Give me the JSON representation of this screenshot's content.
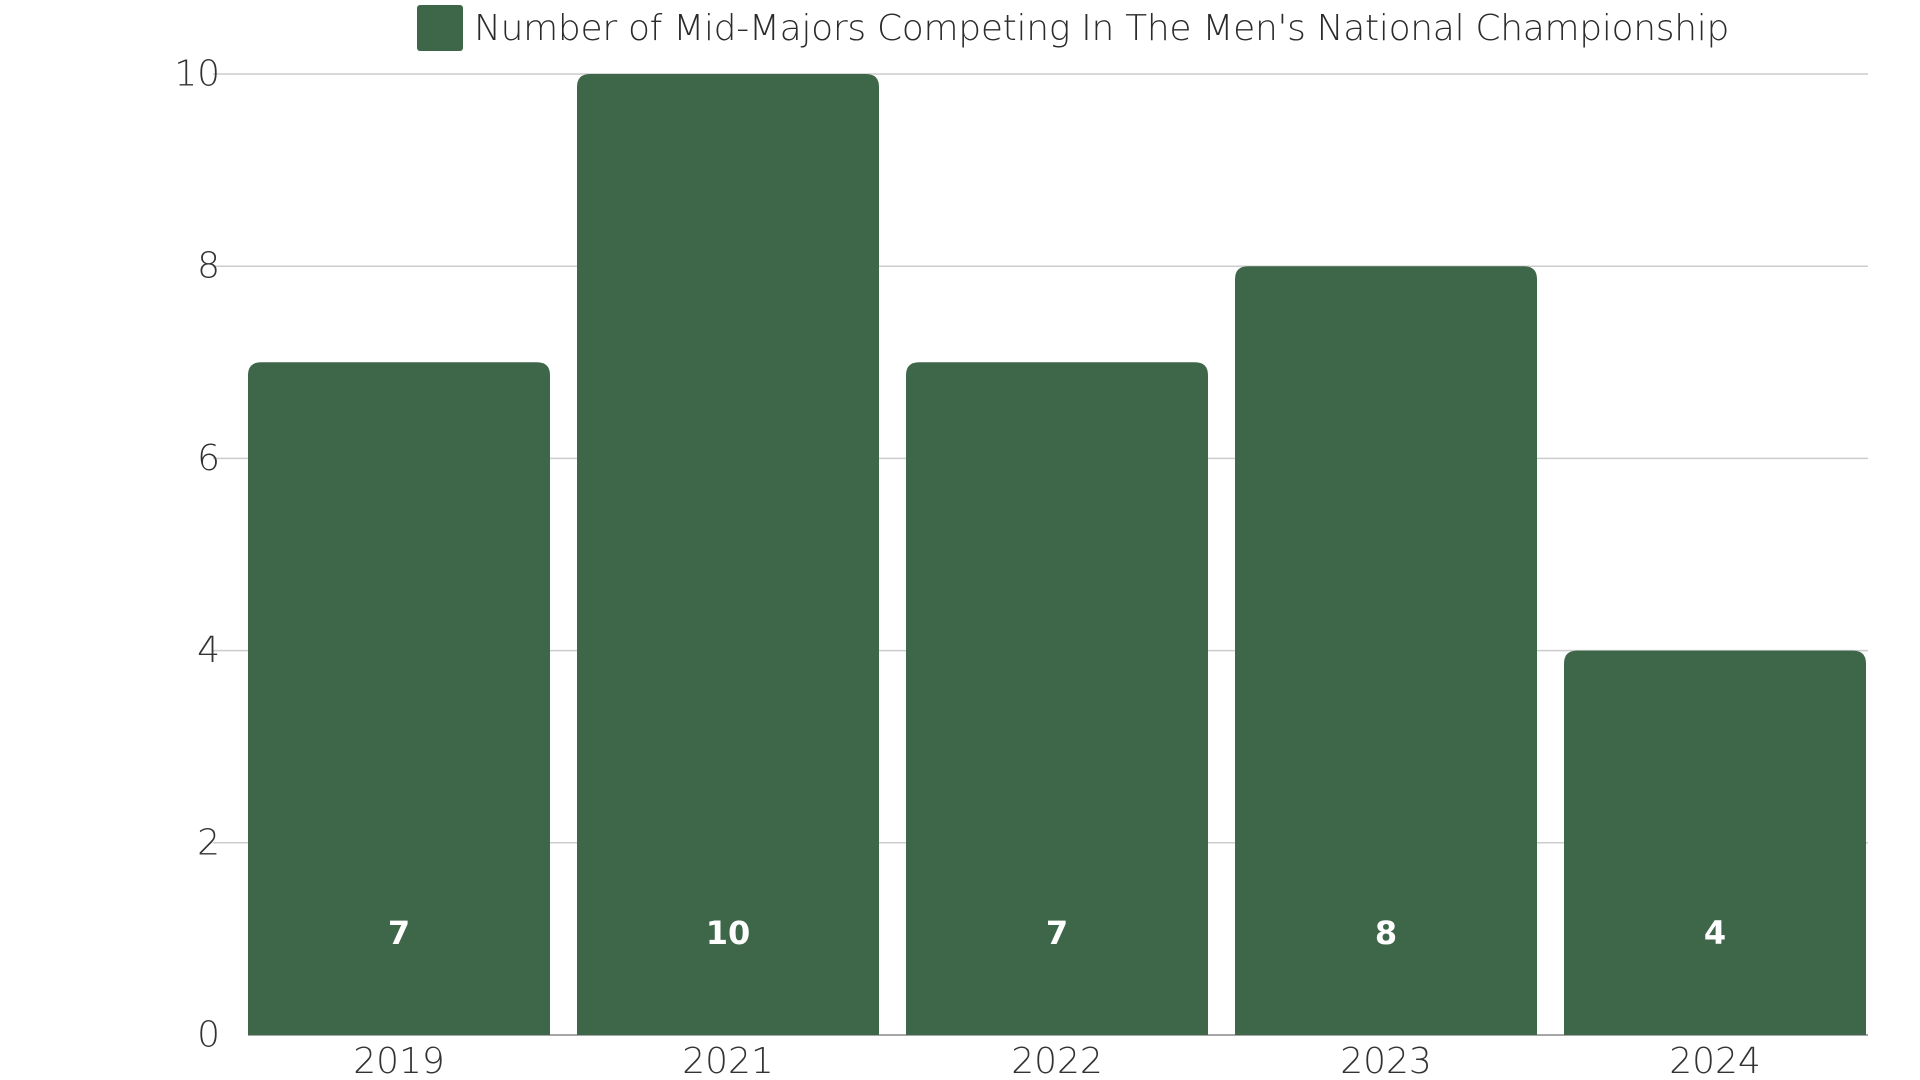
{
  "chart_data": {
    "type": "bar",
    "categories": [
      "2019",
      "2021",
      "2022",
      "2023",
      "2024"
    ],
    "series": [
      {
        "name": "Number of Mid-Majors Competing In The Men's National Championship",
        "values": [
          7,
          10,
          7,
          8,
          4
        ],
        "color": "#3e6648"
      }
    ],
    "data_labels": [
      "7",
      "10",
      "7",
      "8",
      "4"
    ],
    "ylim": [
      0,
      10
    ],
    "y_ticks": [
      0,
      2,
      4,
      6,
      8,
      10
    ],
    "y_tick_labels": [
      "0",
      "2",
      "4",
      "6",
      "8",
      "10"
    ],
    "grid": true,
    "legend_position": "top-center",
    "title": "",
    "xlabel": "",
    "ylabel": ""
  },
  "colors": {
    "bar": "#3e6648",
    "grid": "#cccccc",
    "axis_text": "#333333",
    "data_label": "#ffffff"
  }
}
